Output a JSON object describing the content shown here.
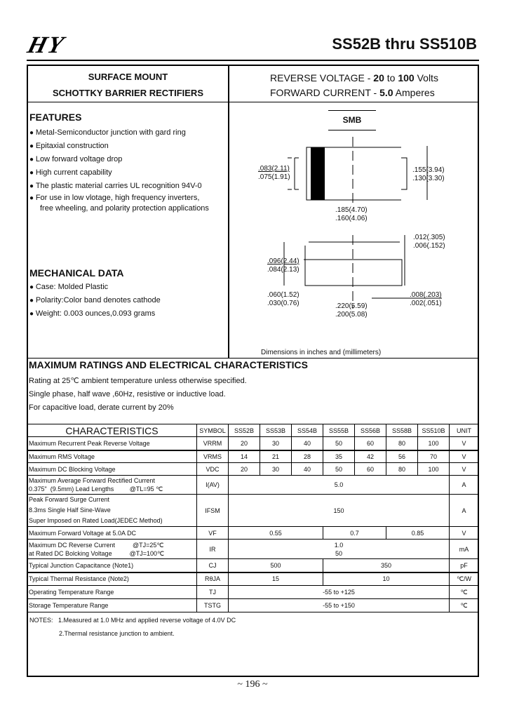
{
  "header": {
    "logo": "HY",
    "title": "SS52B thru SS510B"
  },
  "left_title": [
    "SURFACE MOUNT",
    "SCHOTTKY BARRIER RECTIFIERS"
  ],
  "right_title": {
    "rv_label": "REVERSE VOLTAGE  -",
    "rv_min": "20",
    "rv_to": "to",
    "rv_max": "100",
    "rv_unit": "Volts",
    "fc_label": "FORWARD CURRENT -",
    "fc_val": "5.0",
    "fc_unit": "Amperes"
  },
  "features": {
    "heading": "FEATURES",
    "items": [
      "Metal-Semiconductor junction with gard ring",
      "Epitaxial construction",
      "Low forward voltage drop",
      "High current capability",
      "The plastic material carries UL recognition 94V-0",
      "For use in low vlotage, high frequency inverters,"
    ],
    "continuation": "free wheeling, and polarity protection applications"
  },
  "mechanical": {
    "heading": "MECHANICAL DATA",
    "items": [
      "Case:   Molded Plastic",
      "Polarity:Color band denotes cathode",
      "Weight: 0.003 ounces,0.093 grams"
    ]
  },
  "diagram": {
    "package": "SMB",
    "dims": [
      ".083(2.11)",
      ".075(1.91)",
      ".155(3.94)",
      ".130(3.30)",
      ".185(4.70)",
      ".160(4.06)",
      ".012(.305)",
      ".006(.152)",
      ".096(2.44)",
      ".084(2.13)",
      ".060(1.52)",
      ".030(0.76)",
      ".220(5.59)",
      ".200(5.08)",
      ".008(.203)",
      ".002(.051)"
    ],
    "caption": "Dimensions in inches and (millimeters)"
  },
  "ratings": {
    "heading": "MAXIMUM RATINGS AND ELECTRICAL CHARACTERISTICS",
    "notes": [
      "Rating at 25℃ ambient temperature unless otherwise specified.",
      "Single phase, half wave ,60Hz, resistive or inductive load.",
      "For capacitive load, derate current by 20%"
    ]
  },
  "table": {
    "headers": [
      "CHARACTERISTICS",
      "SYMBOL",
      "SS52B",
      "SS53B",
      "SS54B",
      "SS55B",
      "SS56B",
      "SS58B",
      "SS510B",
      "UNIT"
    ],
    "rows": [
      {
        "c": "Maximum Recurrent Peak Reverse Voltage",
        "s": "VRRM",
        "v": [
          "20",
          "30",
          "40",
          "50",
          "60",
          "80",
          "100"
        ],
        "u": "V"
      },
      {
        "c": "Maximum RMS Voltage",
        "s": "VRMS",
        "v": [
          "14",
          "21",
          "28",
          "35",
          "42",
          "56",
          "70"
        ],
        "u": "V"
      },
      {
        "c": "Maximum DC Blocking Voltage",
        "s": "VDC",
        "v": [
          "20",
          "30",
          "40",
          "50",
          "60",
          "80",
          "100"
        ],
        "u": "V"
      }
    ],
    "avg": {
      "c1": "Maximum Average Forward  Rectified Current",
      "c2": "0.375\"  (9.5mm) Lead Lengths         @TL=95 ℃",
      "s": "I(AV)",
      "v": "5.0",
      "u": "A"
    },
    "surge": {
      "c1": "Peak Forward Surge Current",
      "c2": "8.3ms Single Half Sine-Wave",
      "c3": "Super Imposed on Rated Load(JEDEC Method)",
      "s": "IFSM",
      "v": "150",
      "u": "A"
    },
    "vf": {
      "c": "Maximum Forward Voltage at 5.0A DC",
      "s": "VF",
      "v": [
        "0.55",
        "0.7",
        "0.85"
      ],
      "u": "V"
    },
    "ir": {
      "c1": "Maximum DC Reverse Current          @TJ=25℃",
      "c2": "at Rated DC Bolcking Voltage          @TJ=100℃",
      "s": "IR",
      "v1": "1.0",
      "v2": "50",
      "u": "mA"
    },
    "cj": {
      "c": "Typical Junction  Capacitance (Note1)",
      "s": "CJ",
      "v": [
        "500",
        "350"
      ],
      "u": "pF"
    },
    "rth": {
      "c": "Typical Thermal Resistance (Note2)",
      "s": "RθJA",
      "v": [
        "15",
        "10"
      ],
      "u": "℃/W"
    },
    "tj": {
      "c": "Operating Temperature Range",
      "s": "TJ",
      "v": "-55 to +125",
      "u": "℃"
    },
    "tstg": {
      "c": "Storage Temperature Range",
      "s": "TSTG",
      "v": "-55 to +150",
      "u": "℃"
    }
  },
  "notes": [
    "NOTES:   1.Measured at 1.0 MHz and applied reverse voltage of 4.0V DC",
    "2.Thermal resistance junction to ambient."
  ],
  "footer": {
    "page": "~ 196 ~"
  }
}
